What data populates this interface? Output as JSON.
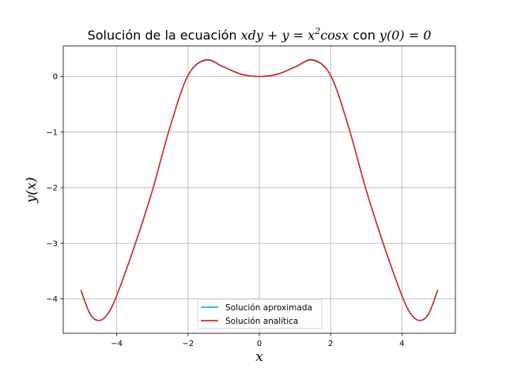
{
  "chart_data": {
    "type": "line",
    "title": "Solución de la ecuación xdy + y = x²cosx con y(0) = 0",
    "title_parts": {
      "prefix": "Solución de la ecuación ",
      "eq_lhs": "xdy + y = x",
      "eq_exp": "2",
      "eq_rhs": "cosx",
      "mid": " con ",
      "condition": "y(0) = 0"
    },
    "xlabel": "x",
    "ylabel": "y(x)",
    "xlim": [
      -5.5,
      5.5
    ],
    "ylim": [
      -4.62,
      0.55
    ],
    "xticks": [
      -4,
      -2,
      0,
      2,
      4
    ],
    "yticks": [
      0,
      -1,
      -2,
      -3,
      -4
    ],
    "xtick_labels": [
      "−4",
      "−2",
      "0",
      "2",
      "4"
    ],
    "ytick_labels": [
      "0",
      "−1",
      "−2",
      "−3",
      "−4"
    ],
    "grid": true,
    "legend_position": "lower center",
    "series": [
      {
        "name": "Solución aproximada",
        "color": "#17becf",
        "x": [
          -5.0,
          -4.75,
          -4.5,
          -4.25,
          -4.0,
          -3.5,
          -3.0,
          -2.5,
          -2.0,
          -1.5,
          -1.0,
          -0.5,
          0.0,
          0.5,
          1.0,
          1.5,
          2.0,
          2.5,
          3.0,
          3.5,
          4.0,
          4.25,
          4.5,
          4.75,
          5.0
        ],
        "y": [
          -3.85,
          -4.27,
          -4.39,
          -4.27,
          -3.94,
          -3.05,
          -2.05,
          -0.9,
          0.02,
          0.29,
          0.17,
          0.04,
          0.0,
          0.04,
          0.17,
          0.29,
          0.02,
          -0.9,
          -2.05,
          -3.05,
          -3.94,
          -4.27,
          -4.39,
          -4.27,
          -3.85
        ]
      },
      {
        "name": "Solución analítica",
        "color": "#d62728",
        "x": [
          -5.0,
          -4.75,
          -4.5,
          -4.25,
          -4.0,
          -3.5,
          -3.0,
          -2.5,
          -2.0,
          -1.5,
          -1.0,
          -0.5,
          0.0,
          0.5,
          1.0,
          1.5,
          2.0,
          2.5,
          3.0,
          3.5,
          4.0,
          4.25,
          4.5,
          4.75,
          5.0
        ],
        "y": [
          -3.85,
          -4.27,
          -4.39,
          -4.27,
          -3.94,
          -3.05,
          -2.05,
          -0.9,
          0.02,
          0.3,
          0.17,
          0.04,
          0.0,
          0.04,
          0.17,
          0.3,
          0.02,
          -0.9,
          -2.05,
          -3.05,
          -3.94,
          -4.27,
          -4.39,
          -4.27,
          -3.85
        ]
      }
    ]
  }
}
